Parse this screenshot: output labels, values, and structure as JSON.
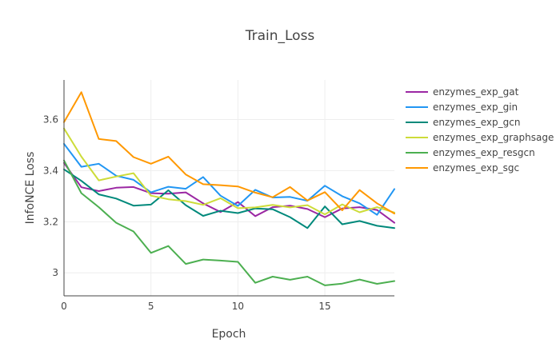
{
  "chart_data": {
    "type": "line",
    "title": "Train_Loss",
    "xlabel": "Epoch",
    "ylabel": "InfoNCE Loss",
    "xlim": [
      0,
      19
    ],
    "ylim": [
      2.91,
      3.755
    ],
    "xticks": [
      0,
      5,
      10,
      15
    ],
    "yticks": [
      3.0,
      3.2,
      3.4,
      3.6
    ],
    "ytick_labels": [
      "3",
      "3.2",
      "3.4",
      "3.6"
    ],
    "grid": true,
    "legend_position": "right",
    "x": [
      0,
      1,
      2,
      3,
      4,
      5,
      6,
      7,
      8,
      9,
      10,
      11,
      12,
      13,
      14,
      15,
      16,
      17,
      18,
      19
    ],
    "series": [
      {
        "name": "enzymes_exp_gat",
        "color": "#9b27a3",
        "values": [
          3.43,
          3.335,
          3.32,
          3.333,
          3.336,
          3.312,
          3.31,
          3.315,
          3.272,
          3.238,
          3.277,
          3.222,
          3.257,
          3.263,
          3.25,
          3.218,
          3.252,
          3.257,
          3.246,
          3.196
        ]
      },
      {
        "name": "enzymes_exp_gin",
        "color": "#2196f3",
        "values": [
          3.505,
          3.415,
          3.427,
          3.38,
          3.364,
          3.315,
          3.337,
          3.329,
          3.375,
          3.302,
          3.262,
          3.325,
          3.295,
          3.297,
          3.282,
          3.341,
          3.3,
          3.272,
          3.227,
          3.328
        ]
      },
      {
        "name": "enzymes_exp_gcn",
        "color": "#00897b",
        "values": [
          3.405,
          3.36,
          3.307,
          3.291,
          3.263,
          3.267,
          3.323,
          3.265,
          3.223,
          3.243,
          3.234,
          3.252,
          3.249,
          3.218,
          3.175,
          3.26,
          3.19,
          3.203,
          3.184,
          3.175
        ]
      },
      {
        "name": "enzymes_exp_graphsage",
        "color": "#cddc39",
        "values": [
          3.565,
          3.455,
          3.362,
          3.377,
          3.39,
          3.302,
          3.288,
          3.281,
          3.266,
          3.292,
          3.253,
          3.256,
          3.266,
          3.256,
          3.265,
          3.229,
          3.268,
          3.237,
          3.257,
          3.236
        ]
      },
      {
        "name": "enzymes_exp_resgcn",
        "color": "#4caf50",
        "values": [
          3.44,
          3.312,
          3.257,
          3.196,
          3.162,
          3.078,
          3.105,
          3.035,
          3.052,
          3.048,
          3.043,
          2.961,
          2.985,
          2.973,
          2.985,
          2.951,
          2.958,
          2.974,
          2.957,
          2.968
        ]
      },
      {
        "name": "enzymes_exp_sgc",
        "color": "#ff9800",
        "values": [
          3.59,
          3.707,
          3.524,
          3.516,
          3.453,
          3.427,
          3.455,
          3.385,
          3.347,
          3.343,
          3.338,
          3.314,
          3.296,
          3.336,
          3.283,
          3.316,
          3.245,
          3.324,
          3.272,
          3.232
        ]
      }
    ]
  }
}
